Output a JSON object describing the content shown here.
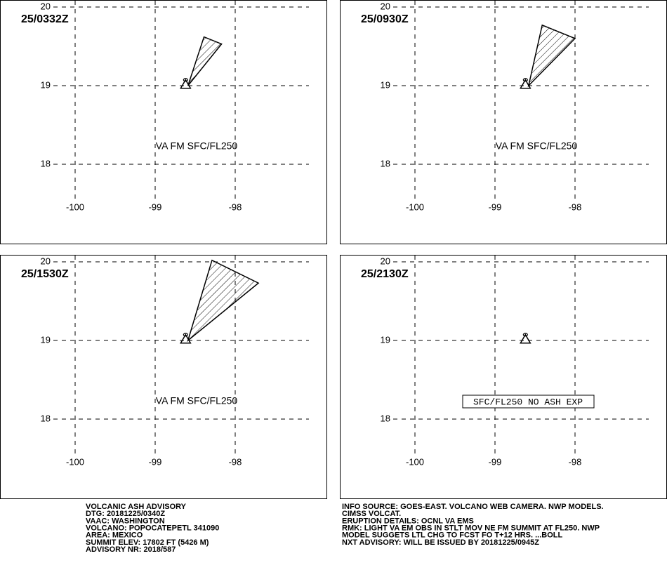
{
  "axes": {
    "lon_ticks": [
      -100,
      -99,
      -98
    ],
    "lat_ticks": [
      20,
      19,
      18
    ]
  },
  "volcano": {
    "lon": -98.62,
    "lat": 19.02
  },
  "panels": [
    {
      "time": "25/0332Z",
      "annotation": "VA FM SFC/FL250",
      "boxed": false,
      "ash_polygon": [
        [
          -98.59,
          19.0
        ],
        [
          -98.39,
          19.62
        ],
        [
          -98.17,
          19.53
        ]
      ]
    },
    {
      "time": "25/0930Z",
      "annotation": "VA FM SFC/FL250",
      "boxed": false,
      "ash_polygon": [
        [
          -98.58,
          19.0
        ],
        [
          -98.41,
          19.77
        ],
        [
          -98.0,
          19.6
        ]
      ]
    },
    {
      "time": "25/1530Z",
      "annotation": "VA FM SFC/FL250",
      "boxed": false,
      "ash_polygon": [
        [
          -98.59,
          19.0
        ],
        [
          -98.29,
          20.02
        ],
        [
          -97.71,
          19.73
        ]
      ]
    },
    {
      "time": "25/2130Z",
      "annotation": "SFC/FL250 NO ASH EXP",
      "boxed": true,
      "ash_polygon": []
    }
  ],
  "advisory_left": [
    "VOLCANIC ASH ADVISORY",
    "DTG: 20181225/0340Z",
    "VAAC: WASHINGTON",
    "VOLCANO: POPOCATEPETL 341090",
    "AREA: MEXICO",
    "SUMMIT ELEV: 17802 FT (5426 M)",
    "ADVISORY NR: 2018/587"
  ],
  "advisory_right": [
    "INFO SOURCE: GOES-EAST. VOLCANO WEB CAMERA. NWP MODELS.",
    "CIMSS VOLCAT.",
    "ERUPTION DETAILS: OCNL VA EMS",
    "RMK: LIGHT VA EM OBS IN STLT MOV NE FM SUMMIT AT FL250. NWP",
    "MODEL SUGGETS LTL CHG TO FCST FO T+12 HRS. ...BOLL",
    "NXT ADVISORY: WILL BE ISSUED BY 20181225/0945Z"
  ]
}
